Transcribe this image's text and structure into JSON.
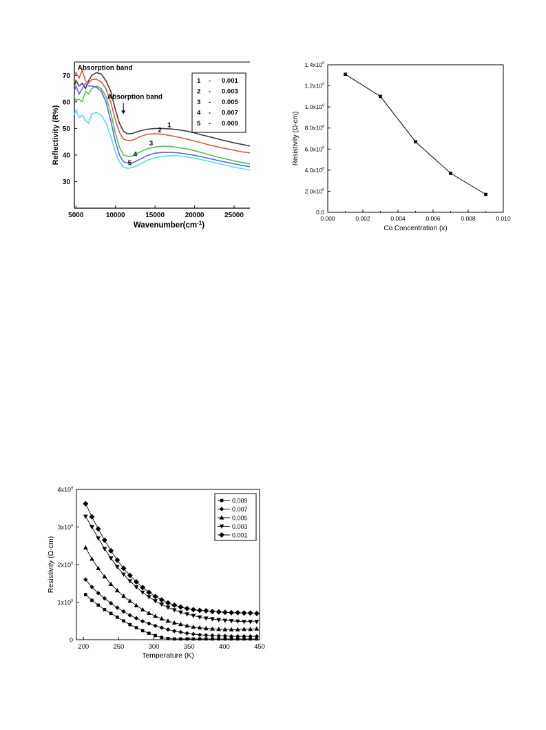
{
  "chart_data": [
    {
      "type": "line",
      "xlabel": "Wavenumber(cm",
      "xlabel_sup": "-1",
      "xlabel_end": ")",
      "ylabel": "Reflectivity (R%)",
      "xlim": [
        4800,
        27000
      ],
      "ylim": [
        20,
        75
      ],
      "x_ticks": [
        5000,
        10000,
        15000,
        20000,
        25000
      ],
      "y_ticks": [
        30,
        40,
        50,
        60,
        70
      ],
      "grid": false,
      "legend_position": "top-right",
      "legend": [
        {
          "n": "1",
          "dash": "-",
          "v": "0.001"
        },
        {
          "n": "2",
          "dash": "-",
          "v": "0.003"
        },
        {
          "n": "3",
          "dash": "-",
          "v": "0.005"
        },
        {
          "n": "4",
          "dash": "-",
          "v": "0.007"
        },
        {
          "n": "5",
          "dash": "-",
          "v": "0.009"
        }
      ],
      "annotations": [
        {
          "text": "Absorption band",
          "x": 5200,
          "y": 72
        },
        {
          "text": "Absorption band",
          "x": 10200,
          "y": 57
        }
      ],
      "series": [
        {
          "label": "1",
          "color": "#3a3a3a",
          "x": [
            4800,
            5000,
            5400,
            5800,
            6200,
            6600,
            7000,
            7600,
            8200,
            8800,
            9400,
            10000,
            10500,
            11000,
            11500,
            12000,
            12500,
            13000,
            14000,
            15000,
            16000,
            17000,
            18000,
            19000,
            20000,
            21000,
            22000,
            23000,
            24000,
            25000,
            26000,
            27000
          ],
          "y": [
            66,
            68,
            66,
            67,
            65,
            68,
            70,
            71,
            70.5,
            68,
            64,
            57,
            52,
            49,
            48,
            48,
            48.5,
            49,
            49.7,
            50,
            50,
            49.8,
            49.5,
            49,
            48.3,
            47.5,
            46.8,
            46,
            45.3,
            44.6,
            44,
            43.4
          ]
        },
        {
          "label": "2",
          "color": "#e0524a",
          "x": [
            4800,
            5000,
            5400,
            5800,
            6200,
            6600,
            7000,
            7600,
            8200,
            8800,
            9400,
            10000,
            10500,
            11000,
            11500,
            12000,
            12500,
            13000,
            14000,
            15000,
            16000,
            17000,
            18000,
            19000,
            20000,
            21000,
            22000,
            23000,
            24000,
            25000,
            26000,
            27000
          ],
          "y": [
            70,
            71,
            69,
            72,
            68,
            67,
            68.5,
            68.5,
            67.5,
            65,
            60,
            53,
            48.5,
            46,
            45.5,
            45.5,
            46,
            46.8,
            47.8,
            48,
            47.8,
            47.3,
            46.7,
            46,
            45.3,
            44.5,
            43.7,
            43,
            42.4,
            41.8,
            41.2,
            40.8
          ]
        },
        {
          "label": "3",
          "color": "#4ec24e",
          "x": [
            4800,
            5000,
            5400,
            5800,
            6200,
            6600,
            7000,
            7600,
            8200,
            8800,
            9400,
            10000,
            10500,
            11000,
            11500,
            12000,
            12500,
            13000,
            14000,
            15000,
            16000,
            17000,
            18000,
            19000,
            20000,
            21000,
            22000,
            23000,
            24000,
            25000,
            26000,
            27000
          ],
          "y": [
            62,
            60.5,
            61,
            60,
            64,
            63,
            65,
            66,
            65,
            62,
            56,
            48,
            43,
            40,
            39.5,
            39.5,
            40,
            41,
            42.3,
            43,
            43.3,
            43.2,
            42.8,
            42.3,
            41.6,
            40.8,
            40,
            39.2,
            38.5,
            37.8,
            37.2,
            36.6
          ]
        },
        {
          "label": "4",
          "color": "#6060e0",
          "x": [
            4800,
            5000,
            5400,
            5800,
            6200,
            6600,
            7000,
            7600,
            8200,
            8800,
            9400,
            10000,
            10500,
            11000,
            11500,
            12000,
            12500,
            13000,
            14000,
            15000,
            16000,
            17000,
            18000,
            19000,
            20000,
            21000,
            22000,
            23000,
            24000,
            25000,
            26000,
            27000
          ],
          "y": [
            64,
            66,
            63,
            65,
            67,
            66,
            66,
            65.5,
            64,
            60,
            53,
            45,
            40,
            37.5,
            37,
            37,
            37.5,
            38.3,
            39.8,
            40.7,
            41,
            41,
            40.8,
            40.4,
            39.9,
            39.3,
            38.6,
            37.9,
            37.3,
            36.7,
            36.1,
            35.6
          ]
        },
        {
          "label": "5",
          "color": "#4fe0ec",
          "x": [
            4800,
            5000,
            5400,
            5800,
            6200,
            6600,
            7000,
            7600,
            8200,
            8800,
            9400,
            10000,
            10500,
            11000,
            11500,
            12000,
            12500,
            13000,
            14000,
            15000,
            16000,
            17000,
            18000,
            19000,
            20000,
            21000,
            22000,
            23000,
            24000,
            25000,
            26000,
            27000
          ],
          "y": [
            55,
            57,
            54,
            55,
            53,
            52,
            55.5,
            56,
            55,
            52,
            47,
            41,
            37.5,
            35.5,
            35,
            35.2,
            35.7,
            36.5,
            38,
            39,
            39.5,
            39.8,
            39.7,
            39.3,
            38.8,
            38.2,
            37.5,
            36.8,
            36.1,
            35.5,
            34.9,
            34.3
          ]
        }
      ],
      "curve_labels": [
        {
          "text": "1",
          "x": 16800,
          "y": 50.5
        },
        {
          "text": "2",
          "x": 15600,
          "y": 48.6
        },
        {
          "text": "3",
          "x": 14500,
          "y": 43.6
        },
        {
          "text": "4",
          "x": 12500,
          "y": 39.5
        },
        {
          "text": "5",
          "x": 11800,
          "y": 36.2
        }
      ]
    },
    {
      "type": "line",
      "xlabel": "Co Concentration (x)",
      "ylabel": "Resistivity (Ω-cm)",
      "xlim": [
        0.0,
        0.01
      ],
      "ylim": [
        0,
        1.4
      ],
      "x_ticks": [
        "0.000",
        "0.002",
        "0.004",
        "0.006",
        "0.008",
        "0.010"
      ],
      "y_ticks": [
        {
          "v": 0,
          "m": "0.0",
          "e": ""
        },
        {
          "v": 0.2,
          "m": "2.0x10",
          "e": "8"
        },
        {
          "v": 0.4,
          "m": "4.0x10",
          "e": "8"
        },
        {
          "v": 0.6,
          "m": "6.0x10",
          "e": "8"
        },
        {
          "v": 0.8,
          "m": "8.0x10",
          "e": "8"
        },
        {
          "v": 1.0,
          "m": "1.0x10",
          "e": "9"
        },
        {
          "v": 1.2,
          "m": "1.2x10",
          "e": "9"
        },
        {
          "v": 1.4,
          "m": "1.4x10",
          "e": "9"
        }
      ],
      "y_scale_note": "values in units of 1e9 Ω-cm",
      "grid": false,
      "series": [
        {
          "x": [
            0.001,
            0.003,
            0.005,
            0.007,
            0.009
          ],
          "y": [
            1.31,
            1.1,
            0.67,
            0.37,
            0.17
          ]
        }
      ]
    },
    {
      "type": "line",
      "xlabel": "Temperature (K)",
      "ylabel": "Resistivity (Ω-cm)",
      "xlim": [
        190,
        450
      ],
      "ylim": [
        0,
        4
      ],
      "x_ticks": [
        200,
        250,
        300,
        350,
        400,
        450
      ],
      "y_ticks": [
        {
          "v": 0,
          "m": "0",
          "e": ""
        },
        {
          "v": 1,
          "m": "1x10",
          "e": "9"
        },
        {
          "v": 2,
          "m": "2x10",
          "e": "9"
        },
        {
          "v": 3,
          "m": "3x10",
          "e": "9"
        },
        {
          "v": 4,
          "m": "4x10",
          "e": "9"
        }
      ],
      "y_scale_note": "values in units of 1e9 Ω-cm",
      "grid": false,
      "legend_position": "top-right",
      "x": [
        203,
        212,
        221,
        230,
        239,
        248,
        257,
        266,
        275,
        284,
        293,
        302,
        311,
        320,
        329,
        338,
        347,
        356,
        365,
        374,
        383,
        392,
        401,
        410,
        419,
        428,
        437,
        446
      ],
      "series": [
        {
          "name": "0.009",
          "marker": "square",
          "y": [
            1.2,
            1.05,
            0.92,
            0.8,
            0.7,
            0.6,
            0.5,
            0.4,
            0.32,
            0.24,
            0.17,
            0.11,
            0.06,
            0.03,
            0.02,
            0.02,
            0.02,
            0.02,
            0.02,
            0.02,
            0.02,
            0.02,
            0.02,
            0.02,
            0.02,
            0.02,
            0.02,
            0.02
          ]
        },
        {
          "name": "0.007",
          "marker": "diamond",
          "y": [
            1.6,
            1.4,
            1.24,
            1.1,
            0.97,
            0.85,
            0.75,
            0.65,
            0.57,
            0.49,
            0.43,
            0.37,
            0.32,
            0.27,
            0.23,
            0.2,
            0.17,
            0.15,
            0.13,
            0.12,
            0.11,
            0.1,
            0.1,
            0.09,
            0.09,
            0.09,
            0.09,
            0.09
          ]
        },
        {
          "name": "0.005",
          "marker": "triangle-up",
          "y": [
            2.45,
            2.15,
            1.9,
            1.68,
            1.48,
            1.31,
            1.16,
            1.03,
            0.91,
            0.8,
            0.71,
            0.63,
            0.56,
            0.5,
            0.45,
            0.41,
            0.37,
            0.34,
            0.32,
            0.3,
            0.29,
            0.28,
            0.27,
            0.27,
            0.27,
            0.28,
            0.28,
            0.29
          ]
        },
        {
          "name": "0.003",
          "marker": "triangle-down",
          "y": [
            3.28,
            3.0,
            2.7,
            2.42,
            2.17,
            1.94,
            1.74,
            1.56,
            1.4,
            1.26,
            1.14,
            1.03,
            0.94,
            0.86,
            0.79,
            0.73,
            0.68,
            0.64,
            0.6,
            0.57,
            0.55,
            0.53,
            0.51,
            0.5,
            0.49,
            0.48,
            0.48,
            0.48
          ]
        },
        {
          "name": "0.001",
          "marker": "diamond-large",
          "y": [
            3.62,
            3.27,
            2.95,
            2.65,
            2.37,
            2.12,
            1.9,
            1.71,
            1.54,
            1.39,
            1.26,
            1.15,
            1.06,
            0.98,
            0.92,
            0.87,
            0.83,
            0.8,
            0.78,
            0.77,
            0.75,
            0.74,
            0.73,
            0.72,
            0.72,
            0.71,
            0.71,
            0.7
          ]
        }
      ]
    }
  ]
}
